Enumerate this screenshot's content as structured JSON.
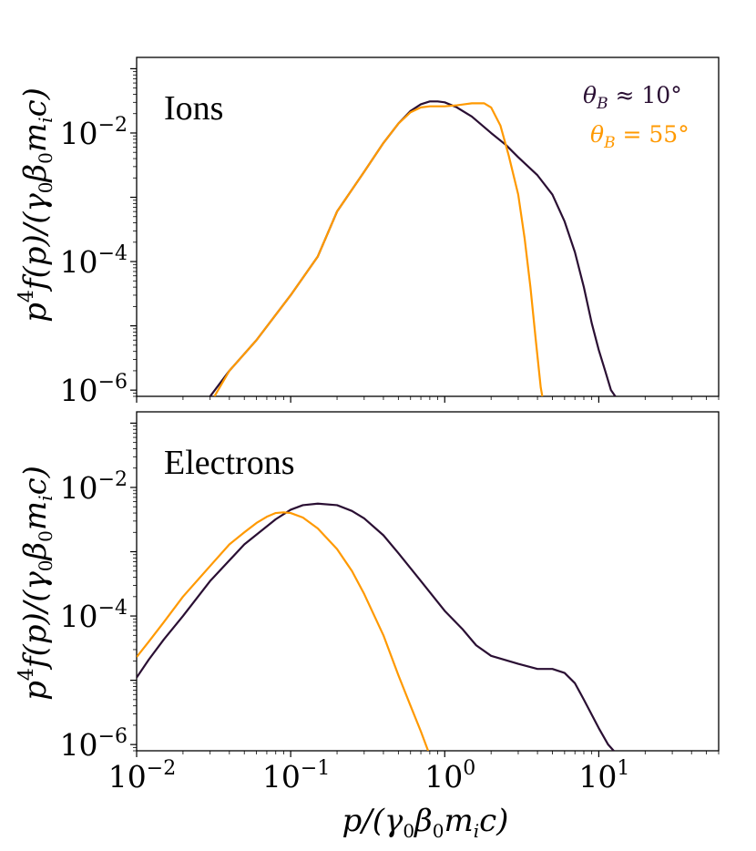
{
  "chart_data": [
    {
      "type": "line",
      "panel": "Ions",
      "x_scale": "log",
      "y_scale": "log",
      "xlim": [
        0.01,
        60
      ],
      "ylim": [
        8e-07,
        0.15
      ],
      "ylabel": "p^4 f(p)/(γ0 β0 mi c)",
      "xlabel": "",
      "yticks": [
        1e-06,
        0.0001,
        0.01
      ],
      "ytick_labels": [
        {
          "base": "10",
          "exp": "−6"
        },
        {
          "base": "10",
          "exp": "−4"
        },
        {
          "base": "10",
          "exp": "−2"
        }
      ],
      "legend": [
        "θB ≈ 10°",
        "θB = 55°"
      ],
      "legend_position": "top-right",
      "series": [
        {
          "name": "θB ≈ 10°",
          "color": "#2a0f33",
          "points": [
            [
              0.03,
              8e-07
            ],
            [
              0.04,
              2e-06
            ],
            [
              0.06,
              6e-06
            ],
            [
              0.1,
              3e-05
            ],
            [
              0.15,
              0.00012
            ],
            [
              0.2,
              0.0006
            ],
            [
              0.3,
              0.0025
            ],
            [
              0.4,
              0.007
            ],
            [
              0.5,
              0.014
            ],
            [
              0.6,
              0.022
            ],
            [
              0.7,
              0.028
            ],
            [
              0.8,
              0.031
            ],
            [
              0.9,
              0.031
            ],
            [
              1.0,
              0.03
            ],
            [
              1.2,
              0.025
            ],
            [
              1.5,
              0.018
            ],
            [
              2.0,
              0.01
            ],
            [
              2.5,
              0.0065
            ],
            [
              3.0,
              0.0042
            ],
            [
              4.0,
              0.0022
            ],
            [
              5.0,
              0.0011
            ],
            [
              6.0,
              0.00042
            ],
            [
              7.0,
              0.00014
            ],
            [
              8.0,
              4e-05
            ],
            [
              9.0,
              1.1e-05
            ],
            [
              10.0,
              4.2e-06
            ],
            [
              11.0,
              2e-06
            ],
            [
              12.0,
              1e-06
            ],
            [
              12.8,
              8e-07
            ]
          ]
        },
        {
          "name": "θB = 55°",
          "color": "#ff9900",
          "points": [
            [
              0.032,
              8e-07
            ],
            [
              0.04,
              2e-06
            ],
            [
              0.06,
              6e-06
            ],
            [
              0.1,
              3e-05
            ],
            [
              0.15,
              0.00012
            ],
            [
              0.2,
              0.0006
            ],
            [
              0.3,
              0.0025
            ],
            [
              0.4,
              0.007
            ],
            [
              0.5,
              0.014
            ],
            [
              0.6,
              0.021
            ],
            [
              0.7,
              0.025
            ],
            [
              0.8,
              0.026
            ],
            [
              1.0,
              0.026
            ],
            [
              1.2,
              0.027
            ],
            [
              1.5,
              0.029
            ],
            [
              1.8,
              0.029
            ],
            [
              2.0,
              0.025
            ],
            [
              2.3,
              0.013
            ],
            [
              2.6,
              0.0045
            ],
            [
              3.0,
              0.0011
            ],
            [
              3.3,
              0.00023
            ],
            [
              3.6,
              4e-05
            ],
            [
              3.9,
              6e-06
            ],
            [
              4.2,
              1.1e-06
            ],
            [
              4.3,
              8e-07
            ]
          ]
        }
      ]
    },
    {
      "type": "line",
      "panel": "Electrons",
      "x_scale": "log",
      "y_scale": "log",
      "xlim": [
        0.01,
        60
      ],
      "ylim": [
        8e-07,
        0.15
      ],
      "ylabel": "p^4 f(p)/(γ0 β0 mi c)",
      "xlabel": "p/(γ0 β0 mi c)",
      "xticks": [
        0.01,
        0.1,
        1,
        10
      ],
      "xtick_labels": [
        {
          "base": "10",
          "exp": "−2"
        },
        {
          "base": "10",
          "exp": "−1"
        },
        {
          "base": "10",
          "exp": "0"
        },
        {
          "base": "10",
          "exp": "1"
        }
      ],
      "yticks": [
        1e-06,
        0.0001,
        0.01
      ],
      "ytick_labels": [
        {
          "base": "10",
          "exp": "−6"
        },
        {
          "base": "10",
          "exp": "−4"
        },
        {
          "base": "10",
          "exp": "−2"
        }
      ],
      "series": [
        {
          "name": "θB ≈ 10°",
          "color": "#2a0f33",
          "points": [
            [
              0.01,
              1.1e-05
            ],
            [
              0.012,
              2.1e-05
            ],
            [
              0.015,
              4.3e-05
            ],
            [
              0.02,
              0.0001
            ],
            [
              0.03,
              0.00035
            ],
            [
              0.05,
              0.0013
            ],
            [
              0.08,
              0.0032
            ],
            [
              0.1,
              0.0045
            ],
            [
              0.12,
              0.0053
            ],
            [
              0.15,
              0.0056
            ],
            [
              0.2,
              0.0053
            ],
            [
              0.25,
              0.0043
            ],
            [
              0.3,
              0.0033
            ],
            [
              0.4,
              0.0018
            ],
            [
              0.5,
              0.00095
            ],
            [
              0.7,
              0.00035
            ],
            [
              1.0,
              0.00012
            ],
            [
              1.3,
              6.3e-05
            ],
            [
              1.6,
              3.5e-05
            ],
            [
              2.0,
              2.4e-05
            ],
            [
              3.0,
              1.8e-05
            ],
            [
              4.0,
              1.5e-05
            ],
            [
              5.0,
              1.5e-05
            ],
            [
              6.0,
              1.3e-05
            ],
            [
              7.0,
              9e-06
            ],
            [
              8.0,
              5e-06
            ],
            [
              10.0,
              1.8e-06
            ],
            [
              11.5,
              1e-06
            ],
            [
              12.5,
              8e-07
            ]
          ]
        },
        {
          "name": "θB = 55°",
          "color": "#ff9900",
          "points": [
            [
              0.01,
              2.3e-05
            ],
            [
              0.012,
              4e-05
            ],
            [
              0.015,
              8e-05
            ],
            [
              0.02,
              0.0002
            ],
            [
              0.03,
              0.0006
            ],
            [
              0.04,
              0.0013
            ],
            [
              0.05,
              0.002
            ],
            [
              0.06,
              0.0028
            ],
            [
              0.07,
              0.0035
            ],
            [
              0.08,
              0.004
            ],
            [
              0.09,
              0.0041
            ],
            [
              0.1,
              0.004
            ],
            [
              0.12,
              0.0034
            ],
            [
              0.15,
              0.0023
            ],
            [
              0.2,
              0.0011
            ],
            [
              0.25,
              0.0005
            ],
            [
              0.3,
              0.00022
            ],
            [
              0.4,
              5e-05
            ],
            [
              0.5,
              1.2e-05
            ],
            [
              0.6,
              4e-06
            ],
            [
              0.7,
              1.6e-06
            ],
            [
              0.78,
              8e-07
            ]
          ]
        }
      ]
    }
  ],
  "panels": {
    "top_label": "Ions",
    "bottom_label": "Electrons"
  },
  "legend": {
    "entry1": {
      "theta": "θ",
      "sub": "B",
      "rel": " ≈ 10°",
      "color": "#2a0f33"
    },
    "entry2": {
      "theta": "θ",
      "sub": "B",
      "rel": " = 55°",
      "color": "#ff9900"
    }
  },
  "axes": {
    "ylabel": {
      "p": "p",
      "sup": "4",
      "rest1": "f(p)/(",
      "g": "γ",
      "g_sub": "0",
      "b": "β",
      "b_sub": "0",
      "m": "m",
      "m_sub": "i",
      "rest2": "c)"
    },
    "xlabel": {
      "rest0": "p/(",
      "g": "γ",
      "g_sub": "0",
      "b": "β",
      "b_sub": "0",
      "m": "m",
      "m_sub": "i",
      "rest2": "c)"
    }
  }
}
